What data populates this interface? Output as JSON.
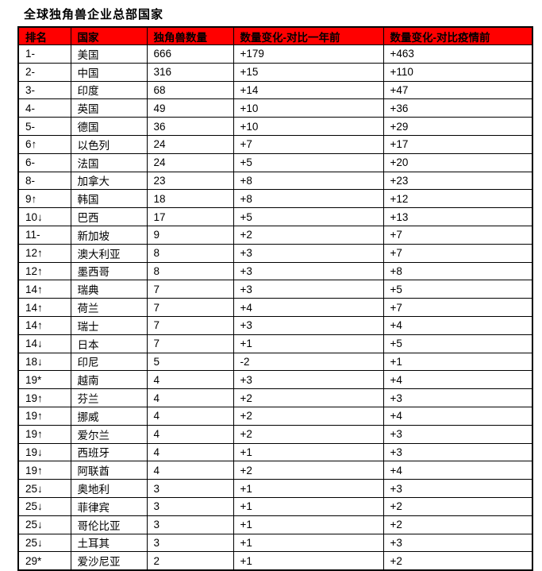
{
  "title": "全球独角兽企业总部国家",
  "table": {
    "header_bg_color": "#FF0000",
    "header_text_color": "#000000",
    "border_color": "#000000",
    "headers": [
      {
        "key": "rank",
        "label": "排名"
      },
      {
        "key": "country",
        "label": "国家"
      },
      {
        "key": "unicorn-count",
        "label": "独角兽数量"
      },
      {
        "key": "change-vs-one-year-ago",
        "label": "数量变化-对比一年前"
      },
      {
        "key": "change-vs-pre-pandemic",
        "label": "数量变化-对比疫情前"
      }
    ],
    "rows": [
      [
        "1-",
        "美国",
        "666",
        "+179",
        "+463"
      ],
      [
        "2-",
        "中国",
        "316",
        "+15",
        "+110"
      ],
      [
        "3-",
        "印度",
        "68",
        "+14",
        "+47"
      ],
      [
        "4-",
        "英国",
        "49",
        "+10",
        "+36"
      ],
      [
        "5-",
        "德国",
        "36",
        "+10",
        "+29"
      ],
      [
        "6↑",
        "以色列",
        "24",
        "+7",
        "+17"
      ],
      [
        "6-",
        "法国",
        "24",
        "+5",
        "+20"
      ],
      [
        "8-",
        "加拿大",
        "23",
        "+8",
        "+23"
      ],
      [
        "9↑",
        "韩国",
        "18",
        "+8",
        "+12"
      ],
      [
        "10↓",
        "巴西",
        "17",
        "+5",
        "+13"
      ],
      [
        "11-",
        "新加坡",
        "9",
        "+2",
        "+7"
      ],
      [
        "12↑",
        "澳大利亚",
        "8",
        "+3",
        "+7"
      ],
      [
        "12↑",
        "墨西哥",
        "8",
        "+3",
        "+8"
      ],
      [
        "14↑",
        "瑞典",
        "7",
        "+3",
        "+5"
      ],
      [
        "14↑",
        "荷兰",
        "7",
        "+4",
        "+7"
      ],
      [
        "14↑",
        "瑞士",
        "7",
        "+3",
        "+4"
      ],
      [
        "14↓",
        "日本",
        "7",
        "+1",
        "+5"
      ],
      [
        "18↓",
        "印尼",
        "5",
        "-2",
        "+1"
      ],
      [
        "19*",
        "越南",
        "4",
        "+3",
        "+4"
      ],
      [
        "19↑",
        "芬兰",
        "4",
        "+2",
        "+3"
      ],
      [
        "19↑",
        "挪威",
        "4",
        "+2",
        "+4"
      ],
      [
        "19↑",
        "爱尔兰",
        "4",
        "+2",
        "+3"
      ],
      [
        "19↓",
        "西班牙",
        "4",
        "+1",
        "+3"
      ],
      [
        "19↑",
        "阿联酋",
        "4",
        "+2",
        "+4"
      ],
      [
        "25↓",
        "奥地利",
        "3",
        "+1",
        "+3"
      ],
      [
        "25↓",
        "菲律宾",
        "3",
        "+1",
        "+2"
      ],
      [
        "25↓",
        "哥伦比亚",
        "3",
        "+1",
        "+2"
      ],
      [
        "25↓",
        "土耳其",
        "3",
        "+1",
        "+3"
      ],
      [
        "29*",
        "爱沙尼亚",
        "2",
        "+1",
        "+2"
      ]
    ]
  }
}
